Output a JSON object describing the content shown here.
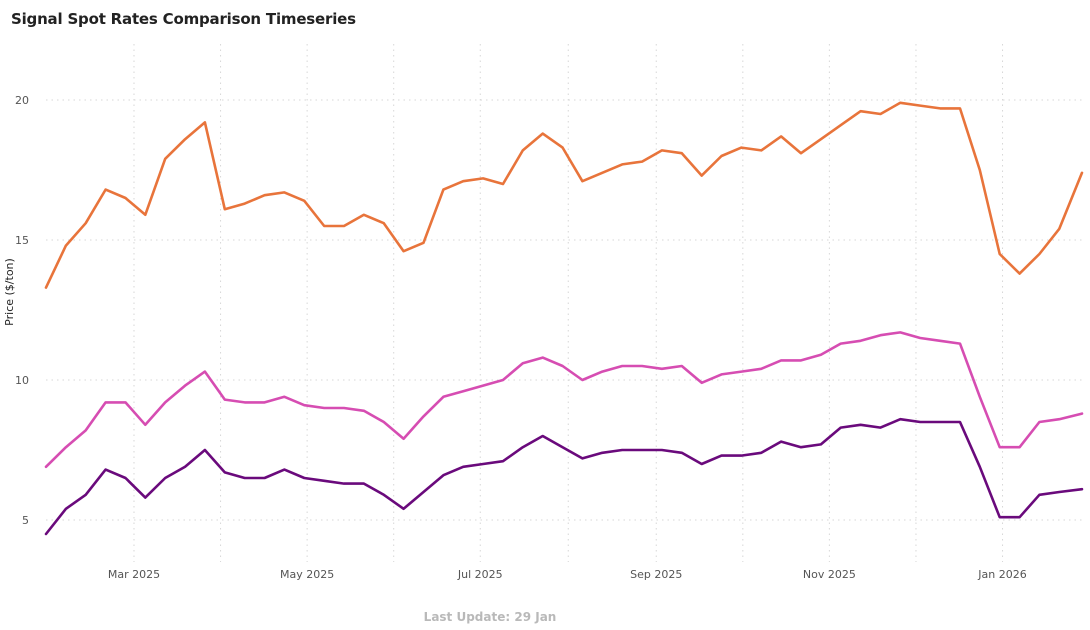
{
  "chart_data": {
    "type": "line",
    "title": "Signal Spot Rates Comparison Timeseries",
    "xlabel": "",
    "ylabel": "Price ($/ton)",
    "ylim": [
      3.5,
      22
    ],
    "xlim": [
      "2025-01-29",
      "2026-01-29"
    ],
    "grid": true,
    "legend": "none",
    "x_tick_labels": [
      {
        "date": "2025-03-01",
        "label": "Mar 2025"
      },
      {
        "date": "2025-05-01",
        "label": "May 2025"
      },
      {
        "date": "2025-07-01",
        "label": "Jul 2025"
      },
      {
        "date": "2025-09-01",
        "label": "Sep 2025"
      },
      {
        "date": "2025-11-01",
        "label": "Nov 2025"
      },
      {
        "date": "2026-01-01",
        "label": "Jan 2026"
      }
    ],
    "y_ticks": [
      5,
      10,
      15,
      20
    ],
    "x": [
      "2025-01-29",
      "2025-02-05",
      "2025-02-12",
      "2025-02-19",
      "2025-02-26",
      "2025-03-05",
      "2025-03-12",
      "2025-03-19",
      "2025-03-26",
      "2025-04-02",
      "2025-04-09",
      "2025-04-16",
      "2025-04-23",
      "2025-04-30",
      "2025-05-07",
      "2025-05-14",
      "2025-05-21",
      "2025-05-28",
      "2025-06-04",
      "2025-06-11",
      "2025-06-18",
      "2025-06-25",
      "2025-07-02",
      "2025-07-09",
      "2025-07-16",
      "2025-07-23",
      "2025-07-30",
      "2025-08-06",
      "2025-08-13",
      "2025-08-20",
      "2025-08-27",
      "2025-09-03",
      "2025-09-10",
      "2025-09-17",
      "2025-09-24",
      "2025-10-01",
      "2025-10-08",
      "2025-10-15",
      "2025-10-22",
      "2025-10-29",
      "2025-11-05",
      "2025-11-12",
      "2025-11-19",
      "2025-11-26",
      "2025-12-03",
      "2025-12-10",
      "2025-12-17",
      "2025-12-24",
      "2025-12-31",
      "2026-01-07",
      "2026-01-14",
      "2026-01-21",
      "2026-01-29"
    ],
    "series": [
      {
        "color": "#e8743b",
        "values": [
          13.3,
          14.8,
          15.6,
          16.8,
          16.5,
          15.9,
          17.9,
          18.6,
          19.2,
          16.1,
          16.3,
          16.6,
          16.7,
          16.4,
          15.5,
          15.5,
          15.9,
          15.6,
          14.6,
          14.9,
          16.8,
          17.1,
          17.2,
          17.0,
          18.2,
          18.8,
          18.3,
          17.1,
          17.4,
          17.7,
          17.8,
          18.2,
          18.1,
          17.3,
          18.0,
          18.3,
          18.2,
          18.7,
          18.1,
          18.6,
          19.1,
          19.6,
          19.5,
          19.9,
          19.8,
          19.7,
          19.7,
          17.5,
          14.5,
          13.8,
          14.5,
          15.4,
          17.4
        ]
      },
      {
        "color": "#d64db2",
        "values": [
          6.9,
          7.6,
          8.2,
          9.2,
          9.2,
          8.4,
          9.2,
          9.8,
          10.3,
          9.3,
          9.2,
          9.2,
          9.4,
          9.1,
          9.0,
          9.0,
          8.9,
          8.5,
          7.9,
          8.7,
          9.4,
          9.6,
          9.8,
          10.0,
          10.6,
          10.8,
          10.5,
          10.0,
          10.3,
          10.5,
          10.5,
          10.4,
          10.5,
          9.9,
          10.2,
          10.3,
          10.4,
          10.7,
          10.7,
          10.9,
          11.3,
          11.4,
          11.6,
          11.7,
          11.5,
          11.4,
          11.3,
          9.4,
          7.6,
          7.6,
          8.5,
          8.6,
          8.8
        ]
      },
      {
        "color": "#6a0a7c",
        "values": [
          4.5,
          5.4,
          5.9,
          6.8,
          6.5,
          5.8,
          6.5,
          6.9,
          7.5,
          6.7,
          6.5,
          6.5,
          6.8,
          6.5,
          6.4,
          6.3,
          6.3,
          5.9,
          5.4,
          6.0,
          6.6,
          6.9,
          7.0,
          7.1,
          7.6,
          8.0,
          7.6,
          7.2,
          7.4,
          7.5,
          7.5,
          7.5,
          7.4,
          7.0,
          7.3,
          7.3,
          7.4,
          7.8,
          7.6,
          7.7,
          8.3,
          8.4,
          8.3,
          8.6,
          8.5,
          8.5,
          8.5,
          6.9,
          5.1,
          5.1,
          5.9,
          6.0,
          6.1
        ]
      }
    ]
  },
  "footer": {
    "last_update": "Last Update: 29 Jan"
  }
}
